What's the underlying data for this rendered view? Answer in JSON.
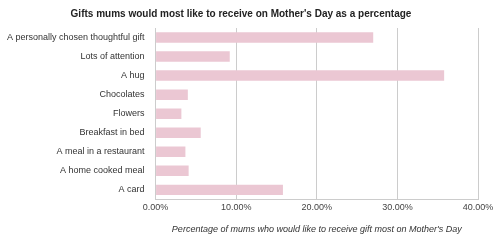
{
  "chart_data": {
    "type": "bar",
    "title": "Gifts mums would most like to receive on Mother's Day as a percentage",
    "x_label": "Percentage of mums who would like to receive gift most on Mother's Day",
    "orientation": "horizontal",
    "categories": [
      "A personally chosen thoughtful gift",
      "Lots of attention",
      "A hug",
      "Chocolates",
      "Flowers",
      "Breakfast in bed",
      "A meal in a restaurant",
      "A home cooked meal",
      "A card"
    ],
    "values": [
      27.0,
      9.2,
      35.8,
      4.0,
      3.2,
      5.6,
      3.7,
      4.1,
      15.8
    ],
    "color": "#ebc7d3",
    "xlim": [
      0,
      40
    ],
    "xticks": [
      {
        "value": 0,
        "label": "0.00%"
      },
      {
        "value": 10,
        "label": "10.00%"
      },
      {
        "value": 20,
        "label": "20.00%"
      },
      {
        "value": 30,
        "label": "30.00%"
      },
      {
        "value": 40,
        "label": "40.00%"
      }
    ],
    "grid": true
  }
}
